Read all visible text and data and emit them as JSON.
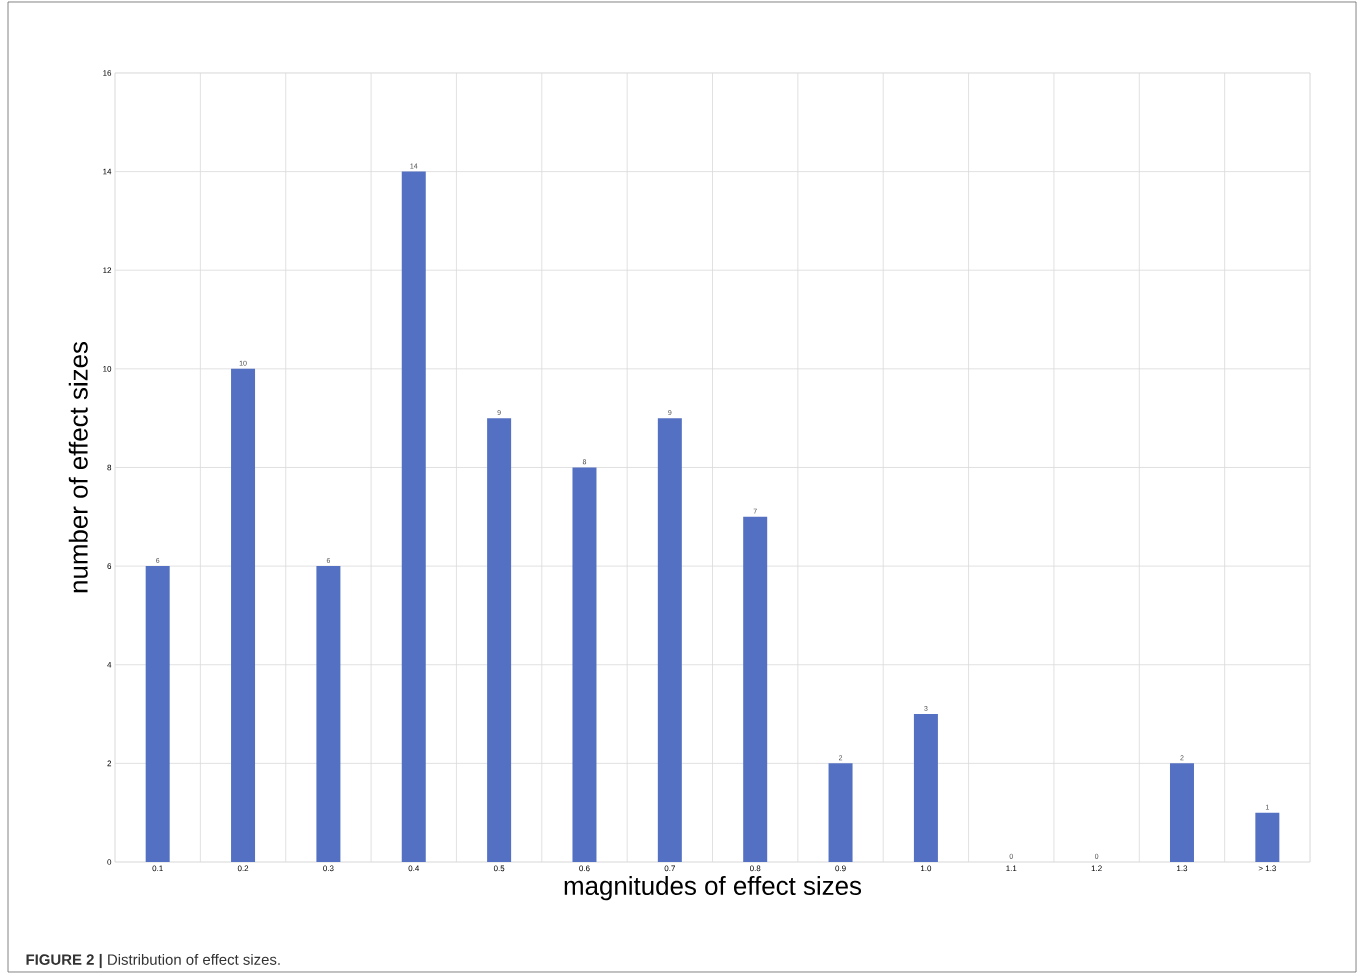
{
  "chart_data": {
    "type": "bar",
    "xlabel": "magnitudes of effect sizes",
    "ylabel": "number of effect sizes",
    "categories": [
      "0.1",
      "0.2",
      "0.3",
      "0.4",
      "0.5",
      "0.6",
      "0.7",
      "0.8",
      "0.9",
      "1.0",
      "1.1",
      "1.2",
      "1.3",
      "> 1.3"
    ],
    "values": [
      6,
      10,
      6,
      14,
      9,
      8,
      9,
      7,
      2,
      3,
      0,
      0,
      2,
      1
    ],
    "color": "#5470c2",
    "ylim": [
      0,
      16
    ],
    "yticks": [
      0,
      2,
      4,
      6,
      8,
      10,
      12,
      14,
      16
    ],
    "grid": true,
    "data_labels": true,
    "annotations": [
      "**FIGURE 2 |** Distribution of effect sizes."
    ]
  }
}
